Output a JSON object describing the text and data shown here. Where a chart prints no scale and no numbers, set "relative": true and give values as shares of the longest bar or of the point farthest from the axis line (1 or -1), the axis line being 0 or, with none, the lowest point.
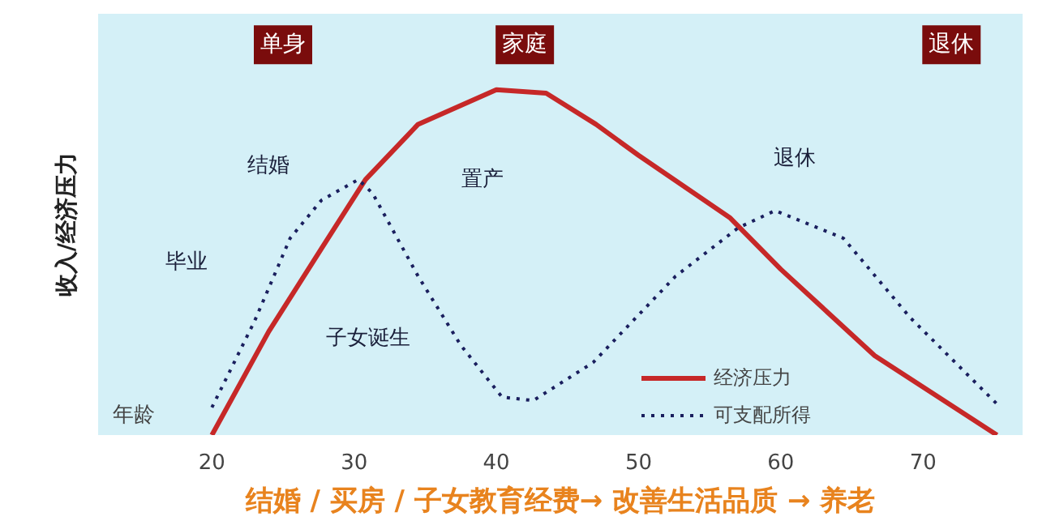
{
  "chart_data": {
    "type": "line",
    "relative": true,
    "xlabel": "年龄",
    "ylabel": "收入/经济压力",
    "xlim": [
      12,
      77
    ],
    "xticks": [
      20,
      30,
      40,
      50,
      60,
      70
    ],
    "grid": false,
    "legend": "bottom right",
    "marker": "none",
    "series": [
      {
        "name": "经济压力",
        "color": "#c62828",
        "line_style": "solid",
        "x": [
          20,
          24,
          27.7,
          30.8,
          34.5,
          40,
          43.5,
          47,
          50,
          56.4,
          60,
          66.6,
          75.2
        ],
        "values": [
          0,
          0.3,
          0.54,
          0.74,
          0.9,
          1,
          0.99,
          0.9,
          0.81,
          0.63,
          0.48,
          0.23,
          0
        ]
      },
      {
        "name": "可支配所得",
        "color": "#1a1f5e",
        "line_style": "dotted",
        "x": [
          20,
          23,
          25.5,
          27.7,
          30.3,
          31.3,
          34.5,
          37.5,
          40.4,
          42.6,
          46.8,
          52.6,
          57,
          59.6,
          64.4,
          69.1,
          75.2
        ],
        "values": [
          0.08,
          0.33,
          0.57,
          0.68,
          0.74,
          0.7,
          0.46,
          0.26,
          0.11,
          0.1,
          0.21,
          0.46,
          0.6,
          0.65,
          0.57,
          0.34,
          0.09
        ]
      }
    ],
    "annotations": [
      "单身",
      "家庭",
      "退休",
      "毕业",
      "结婚",
      "子女诞生",
      "置产",
      "退休",
      "结婚 / 买房 / 子女教育经费→ 改善生活品质 → 养老"
    ]
  }
}
